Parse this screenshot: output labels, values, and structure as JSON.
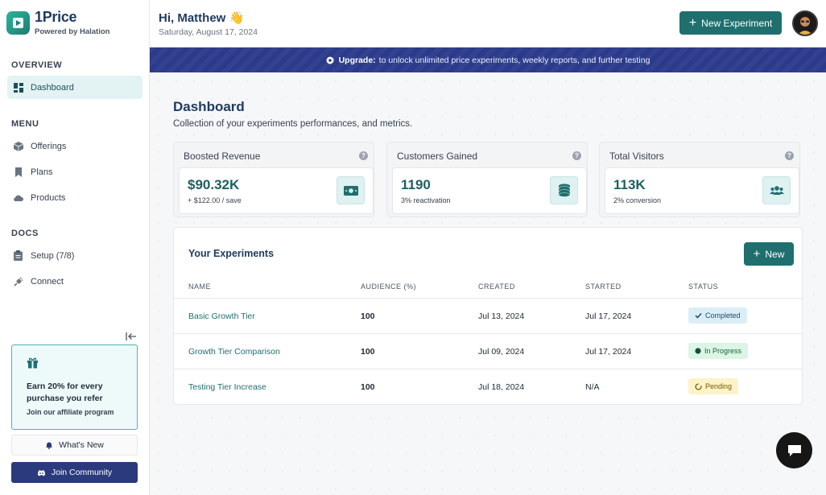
{
  "brand": {
    "name": "1Price",
    "subtitle": "Powered by Halation"
  },
  "sidebar": {
    "overview_title": "OVERVIEW",
    "overview_items": [
      {
        "label": "Dashboard",
        "icon": "dashboard-icon",
        "active": true
      }
    ],
    "menu_title": "MENU",
    "menu_items": [
      {
        "label": "Offerings",
        "icon": "cube-icon"
      },
      {
        "label": "Plans",
        "icon": "bookmark-icon"
      },
      {
        "label": "Products",
        "icon": "cloud-icon"
      }
    ],
    "docs_title": "DOCS",
    "docs_items": [
      {
        "label": "Setup (7/8)",
        "icon": "clipboard-icon"
      },
      {
        "label": "Connect",
        "icon": "plug-icon"
      }
    ],
    "promo": {
      "title": "Earn 20% for every purchase you refer",
      "subtitle": "Join our affiliate program"
    },
    "whats_new": "What's New",
    "join_community": "Join Community"
  },
  "header": {
    "greeting": "Hi, Matthew",
    "greeting_emoji": "👋",
    "date": "Saturday, August 17, 2024",
    "new_experiment": "New Experiment"
  },
  "banner": {
    "strong": "Upgrade:",
    "text": "to unlock unlimited price experiments, weekly reports, and further testing"
  },
  "dashboard": {
    "title": "Dashboard",
    "subtitle": "Collection of your experiments performances, and metrics."
  },
  "stats": [
    {
      "label": "Boosted Revenue",
      "value": "$90.32K",
      "note": "+ $122.00 / save",
      "icon": "cash-icon"
    },
    {
      "label": "Customers Gained",
      "value": "1190",
      "note": "3% reactivation",
      "icon": "coins-icon"
    },
    {
      "label": "Total Visitors",
      "value": "113K",
      "note": "2% conversion",
      "icon": "users-icon"
    }
  ],
  "experiments": {
    "title": "Your Experiments",
    "new_label": "New",
    "columns": [
      "NAME",
      "AUDIENCE (%)",
      "CREATED",
      "STARTED",
      "STATUS"
    ],
    "rows": [
      {
        "name": "Basic Growth Tier",
        "audience": "100",
        "created": "Jul 13, 2024",
        "started": "Jul 17, 2024",
        "status": "Completed"
      },
      {
        "name": "Growth Tier Comparison",
        "audience": "100",
        "created": "Jul 09, 2024",
        "started": "Jul 17, 2024",
        "status": "In Progress"
      },
      {
        "name": "Testing Tier Increase",
        "audience": "100",
        "created": "Jul 18, 2024",
        "started": "N/A",
        "status": "Pending"
      }
    ]
  },
  "colors": {
    "accent": "#1f6f6f",
    "banner": "#2b3a8a",
    "brand_navy": "#1e3a5f"
  }
}
